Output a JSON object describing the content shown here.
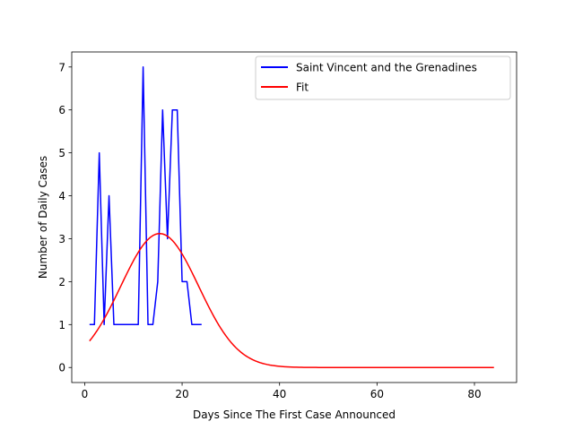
{
  "chart_data": {
    "type": "line",
    "title": "",
    "xlabel": "Days Since The First Case Announced",
    "ylabel": "Number of Daily Cases",
    "xlim": [
      -2.65,
      88.65
    ],
    "ylim": [
      -0.35,
      7.35
    ],
    "xticks": [
      0,
      20,
      40,
      60,
      80
    ],
    "yticks": [
      0,
      1,
      2,
      3,
      4,
      5,
      6,
      7
    ],
    "grid": false,
    "legend_position": "top-right",
    "series": [
      {
        "name": "Saint Vincent and the Grenadines",
        "color": "#0000ff",
        "x": [
          1,
          2,
          3,
          4,
          5,
          6,
          7,
          8,
          9,
          10,
          11,
          12,
          13,
          14,
          15,
          16,
          17,
          18,
          19,
          20,
          21,
          22,
          23,
          24
        ],
        "y": [
          1,
          1,
          5,
          1,
          4,
          1,
          1,
          1,
          1,
          1,
          1,
          7,
          1,
          1,
          2,
          6,
          3,
          6,
          6,
          2,
          2,
          1,
          1,
          1
        ]
      },
      {
        "name": "Fit",
        "color": "#ff0000",
        "model": "gaussian",
        "amplitude": 3.12,
        "center": 15.4,
        "sigma": 8.0,
        "x_range": [
          1,
          84
        ]
      }
    ]
  }
}
